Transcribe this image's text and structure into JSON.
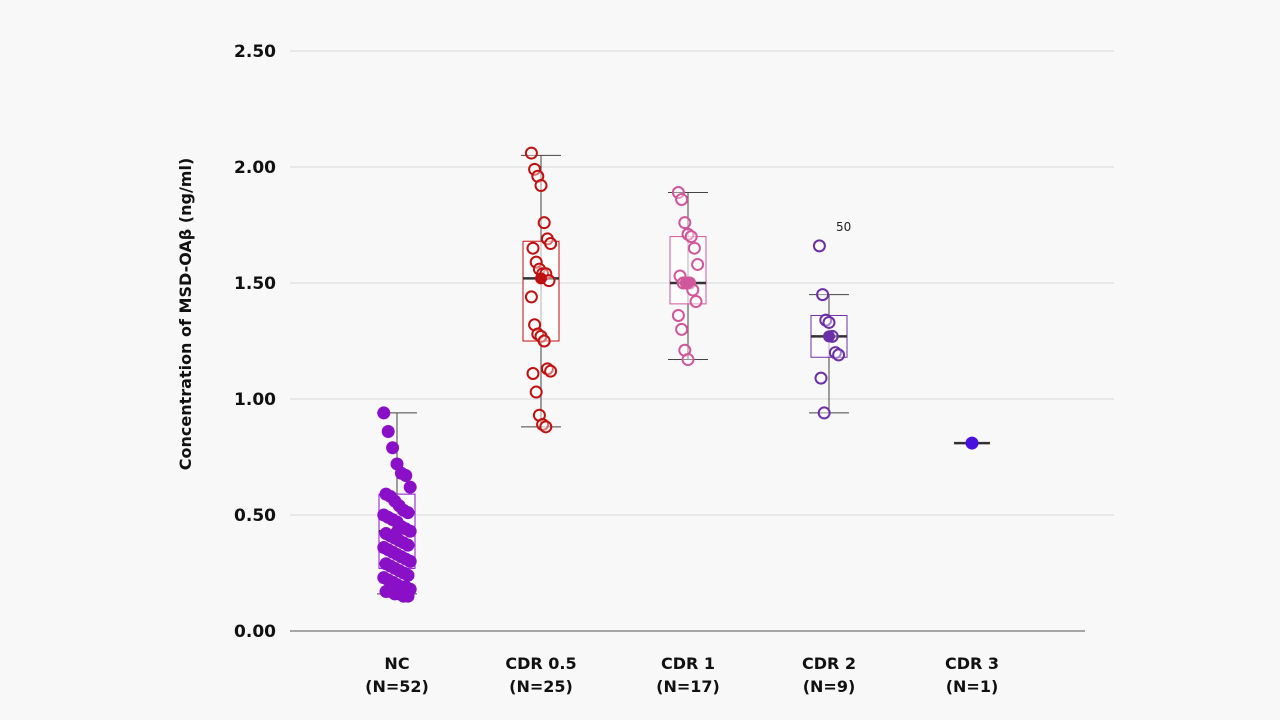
{
  "chart_data": {
    "type": "box-scatter",
    "ylabel": "Concentration of MSD-OAβ (ng/ml)",
    "ylim": [
      0,
      2.5
    ],
    "yticks": [
      "0.00",
      "0.50",
      "1.00",
      "1.50",
      "2.00",
      "2.50"
    ],
    "grid": true,
    "groups": [
      {
        "name": "NC",
        "n_label": "(N=52)",
        "color": "#8a10c8",
        "marker": "filled",
        "box": {
          "whisker_low": 0.16,
          "q1": 0.27,
          "median": 0.43,
          "q3": 0.59,
          "whisker_high": 0.94
        },
        "points": [
          0.94,
          0.86,
          0.79,
          0.72,
          0.68,
          0.67,
          0.62,
          0.59,
          0.58,
          0.56,
          0.54,
          0.52,
          0.51,
          0.5,
          0.49,
          0.48,
          0.47,
          0.45,
          0.44,
          0.43,
          0.42,
          0.41,
          0.4,
          0.39,
          0.38,
          0.37,
          0.36,
          0.35,
          0.34,
          0.33,
          0.32,
          0.31,
          0.3,
          0.29,
          0.28,
          0.27,
          0.26,
          0.25,
          0.24,
          0.23,
          0.22,
          0.21,
          0.2,
          0.19,
          0.19,
          0.18,
          0.17,
          0.17,
          0.16,
          0.16,
          0.15,
          0.15
        ]
      },
      {
        "name": "CDR 0.5",
        "n_label": "(N=25)",
        "color": "#c01010",
        "marker": "open",
        "box": {
          "whisker_low": 0.88,
          "q1": 1.25,
          "median": 1.52,
          "q3": 1.68,
          "whisker_high": 2.05
        },
        "points": [
          2.06,
          1.99,
          1.96,
          1.92,
          1.76,
          1.69,
          1.67,
          1.65,
          1.59,
          1.56,
          1.54,
          1.54,
          1.51,
          1.44,
          1.32,
          1.28,
          1.27,
          1.25,
          1.13,
          1.12,
          1.11,
          1.03,
          0.93,
          0.89,
          0.88
        ]
      },
      {
        "name": "CDR 1",
        "n_label": "(N=17)",
        "color": "#d0579a",
        "marker": "open",
        "box": {
          "whisker_low": 1.17,
          "q1": 1.41,
          "median": 1.5,
          "q3": 1.7,
          "whisker_high": 1.89
        },
        "points": [
          1.89,
          1.86,
          1.76,
          1.71,
          1.7,
          1.65,
          1.58,
          1.53,
          1.5,
          1.5,
          1.5,
          1.47,
          1.42,
          1.36,
          1.3,
          1.21,
          1.17
        ]
      },
      {
        "name": "CDR 2",
        "n_label": "(N=9)",
        "color": "#6d2fa8",
        "marker": "open",
        "box": {
          "whisker_low": 0.94,
          "q1": 1.18,
          "median": 1.27,
          "q3": 1.36,
          "whisker_high": 1.45
        },
        "points": [
          1.66,
          1.45,
          1.34,
          1.33,
          1.27,
          1.2,
          1.19,
          1.09,
          0.94
        ],
        "outlier_label": "50"
      },
      {
        "name": "CDR 3",
        "n_label": "(N=1)",
        "color": "#4a10e0",
        "marker": "filled",
        "box": {
          "whisker_low": 0.81,
          "q1": 0.81,
          "median": 0.81,
          "q3": 0.81,
          "whisker_high": 0.81
        },
        "points": [
          0.81
        ]
      }
    ]
  }
}
